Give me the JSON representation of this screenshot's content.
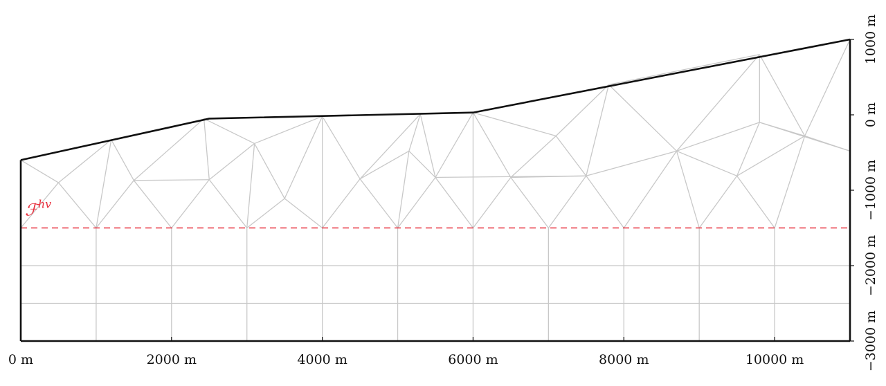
{
  "axes": {
    "x_unit": "m",
    "x_range": [
      0,
      11000
    ],
    "y_range": [
      -3000,
      1100
    ],
    "x_ticks": [
      {
        "value": 0,
        "label": "0 m"
      },
      {
        "value": 2000,
        "label": "2000 m"
      },
      {
        "value": 4000,
        "label": "4000 m"
      },
      {
        "value": 6000,
        "label": "6000 m"
      },
      {
        "value": 8000,
        "label": "8000 m"
      },
      {
        "value": 10000,
        "label": "10000 m"
      }
    ],
    "y_ticks": [
      {
        "value": 1000,
        "label": "1000 m"
      },
      {
        "value": 0,
        "label": "0 m"
      },
      {
        "value": -1000,
        "label": "−1000 m"
      },
      {
        "value": -2000,
        "label": "−2000 m"
      },
      {
        "value": -3000,
        "label": "−3000 m"
      }
    ]
  },
  "interface": {
    "label": "ℱ",
    "superscript": "hv",
    "depth": -1500,
    "color": "#e8313f"
  },
  "colors": {
    "boundary": "#111111",
    "mesh": "#c8c8c8",
    "interface": "#e8313f"
  },
  "domain": {
    "top_surface": [
      [
        0,
        -600
      ],
      [
        2500,
        -50
      ],
      [
        6000,
        30
      ],
      [
        11000,
        1000
      ]
    ],
    "bottom": -3000
  },
  "mesh": {
    "nodes": {
      "T0": [
        0,
        -600
      ],
      "T1": [
        1200,
        -330
      ],
      "T2": [
        2430,
        -50
      ],
      "T3": [
        4000,
        -20
      ],
      "T4": [
        5300,
        10
      ],
      "T5": [
        6000,
        30
      ],
      "T6": [
        7800,
        400
      ],
      "T7": [
        9800,
        800
      ],
      "T8": [
        11000,
        1000
      ],
      "I1": [
        500,
        -900
      ],
      "I2": [
        1500,
        -870
      ],
      "I3": [
        2500,
        -860
      ],
      "I4": [
        3100,
        -380
      ],
      "I5": [
        3500,
        -1110
      ],
      "I6": [
        4500,
        -850
      ],
      "I7": [
        5150,
        -480
      ],
      "I8": [
        5500,
        -830
      ],
      "I9": [
        6500,
        -830
      ],
      "I10": [
        7100,
        -280
      ],
      "I11": [
        7500,
        -810
      ],
      "I12": [
        8700,
        -480
      ],
      "I13": [
        9500,
        -810
      ],
      "I14": [
        9800,
        -100
      ],
      "I15": [
        10400,
        -280
      ],
      "I16": [
        11000,
        -480
      ],
      "R0": [
        0,
        -1500
      ],
      "R1": [
        1000,
        -1500
      ],
      "R2": [
        2000,
        -1500
      ],
      "R3": [
        3000,
        -1500
      ],
      "R4": [
        4000,
        -1500
      ],
      "R5": [
        5000,
        -1500
      ],
      "R6": [
        6000,
        -1500
      ],
      "R7": [
        7000,
        -1500
      ],
      "R8": [
        8000,
        -1500
      ],
      "R9": [
        9000,
        -1500
      ],
      "R10": [
        10000,
        -1500
      ],
      "R11": [
        11000,
        -1500
      ]
    },
    "triangle_edges": [
      [
        "T0",
        "I1"
      ],
      [
        "I1",
        "T1"
      ],
      [
        "I1",
        "R0"
      ],
      [
        "I1",
        "R1"
      ],
      [
        "T1",
        "R1"
      ],
      [
        "T1",
        "I2"
      ],
      [
        "I2",
        "R1"
      ],
      [
        "I2",
        "R2"
      ],
      [
        "I2",
        "T2"
      ],
      [
        "I2",
        "I3"
      ],
      [
        "T2",
        "I3"
      ],
      [
        "T2",
        "I4"
      ],
      [
        "I3",
        "R2"
      ],
      [
        "I3",
        "R3"
      ],
      [
        "I3",
        "I4"
      ],
      [
        "I4",
        "T3"
      ],
      [
        "I4",
        "R3"
      ],
      [
        "I4",
        "I5"
      ],
      [
        "I5",
        "R3"
      ],
      [
        "I5",
        "T3"
      ],
      [
        "I5",
        "R4"
      ],
      [
        "T3",
        "R4"
      ],
      [
        "T3",
        "I6"
      ],
      [
        "I6",
        "R4"
      ],
      [
        "I6",
        "R5"
      ],
      [
        "I6",
        "T4"
      ],
      [
        "I6",
        "I7"
      ],
      [
        "I7",
        "T4"
      ],
      [
        "I7",
        "I8"
      ],
      [
        "T4",
        "I8"
      ],
      [
        "I7",
        "R5"
      ],
      [
        "I8",
        "R5"
      ],
      [
        "I8",
        "R6"
      ],
      [
        "I8",
        "T5"
      ],
      [
        "T5",
        "R6"
      ],
      [
        "T5",
        "I9"
      ],
      [
        "I9",
        "R6"
      ],
      [
        "I9",
        "R7"
      ],
      [
        "I8",
        "I11"
      ],
      [
        "T5",
        "I10"
      ],
      [
        "I10",
        "I9"
      ],
      [
        "I10",
        "I11"
      ],
      [
        "I10",
        "T6"
      ],
      [
        "I9",
        "I11"
      ],
      [
        "I11",
        "R7"
      ],
      [
        "I11",
        "R8"
      ],
      [
        "I11",
        "T6"
      ],
      [
        "T6",
        "I12"
      ],
      [
        "I11",
        "I12"
      ],
      [
        "I12",
        "R8"
      ],
      [
        "I12",
        "R9"
      ],
      [
        "I12",
        "T7"
      ],
      [
        "T6",
        "T7"
      ],
      [
        "I12",
        "I14"
      ],
      [
        "I12",
        "I13"
      ],
      [
        "I13",
        "R9"
      ],
      [
        "I13",
        "R10"
      ],
      [
        "I14",
        "I15"
      ],
      [
        "I13",
        "I15"
      ],
      [
        "T7",
        "I14"
      ],
      [
        "T7",
        "I15"
      ],
      [
        "I15",
        "T8"
      ],
      [
        "I15",
        "I16"
      ],
      [
        "I15",
        "R10"
      ],
      [
        "I16",
        "R11"
      ],
      [
        "I14",
        "I16"
      ],
      [
        "I13",
        "I14"
      ],
      [
        "T8",
        "I16"
      ]
    ],
    "grid_verticals": [
      1000,
      2000,
      3000,
      4000,
      5000,
      6000,
      7000,
      8000,
      9000,
      10000
    ],
    "grid_horizontals": [
      -2000,
      -2500
    ]
  }
}
